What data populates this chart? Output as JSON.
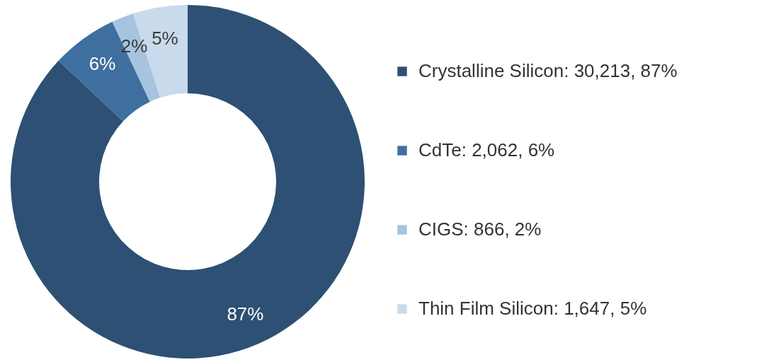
{
  "chart_data": {
    "type": "donut",
    "categories": [
      "Crystalline Silicon: 30,213, 87%",
      "CdTe: 2,062, 6%",
      "CIGS: 866, 2%",
      "Thin Film Silicon: 1,647, 5%"
    ],
    "values": [
      87,
      6,
      2,
      5
    ],
    "value_labels": [
      "87%",
      "6%",
      "2%",
      "5%"
    ],
    "colors": [
      "#2d5074",
      "#3f6f9f",
      "#a6c3df",
      "#c9daec"
    ],
    "legend": "right"
  }
}
